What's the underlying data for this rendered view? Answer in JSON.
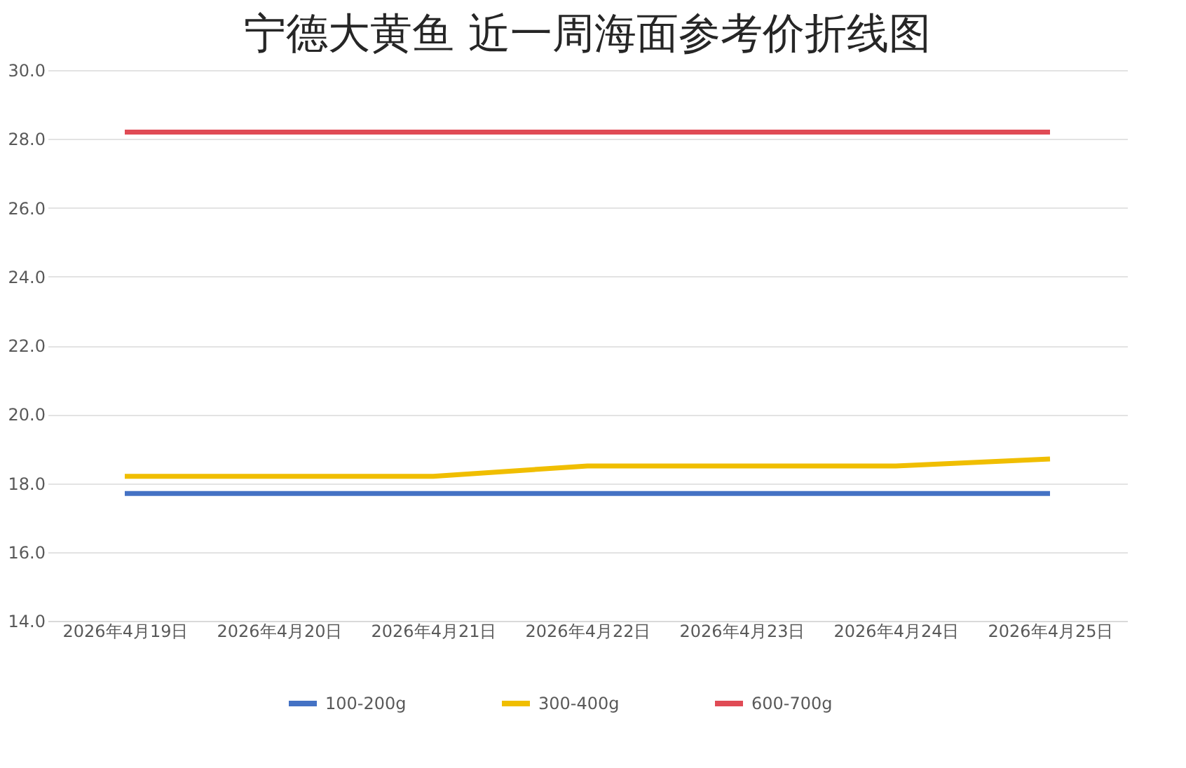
{
  "chart_data": {
    "type": "line",
    "title": "宁德大黄鱼 近一周海面参考价折线图",
    "categories": [
      "2026年4月19日",
      "2026年4月20日",
      "2026年4月21日",
      "2026年4月22日",
      "2026年4月23日",
      "2026年4月24日",
      "2026年4月25日"
    ],
    "series": [
      {
        "name": "100-200g",
        "color": "#4472c4",
        "values": [
          17.7,
          17.7,
          17.7,
          17.7,
          17.7,
          17.7,
          17.7
        ]
      },
      {
        "name": "300-400g",
        "color": "#f0be00",
        "values": [
          18.2,
          18.2,
          18.2,
          18.5,
          18.5,
          18.5,
          18.7
        ]
      },
      {
        "name": "600-700g",
        "color": "#e04b55",
        "values": [
          28.2,
          28.2,
          28.2,
          28.2,
          28.2,
          28.2,
          28.2
        ]
      }
    ],
    "ylim": [
      14,
      30
    ],
    "yticks": [
      {
        "value": 14,
        "label": "14.0"
      },
      {
        "value": 16,
        "label": "16.0"
      },
      {
        "value": 18,
        "label": "18.0"
      },
      {
        "value": 20,
        "label": "20.0"
      },
      {
        "value": 22,
        "label": "22.0"
      },
      {
        "value": 24,
        "label": "24.0"
      },
      {
        "value": 26,
        "label": "26.0"
      },
      {
        "value": 28,
        "label": "28.0"
      },
      {
        "value": 30,
        "label": "30.0"
      }
    ],
    "grid": "y",
    "legend": "bottom",
    "marker": "none",
    "line_style": "solid"
  }
}
